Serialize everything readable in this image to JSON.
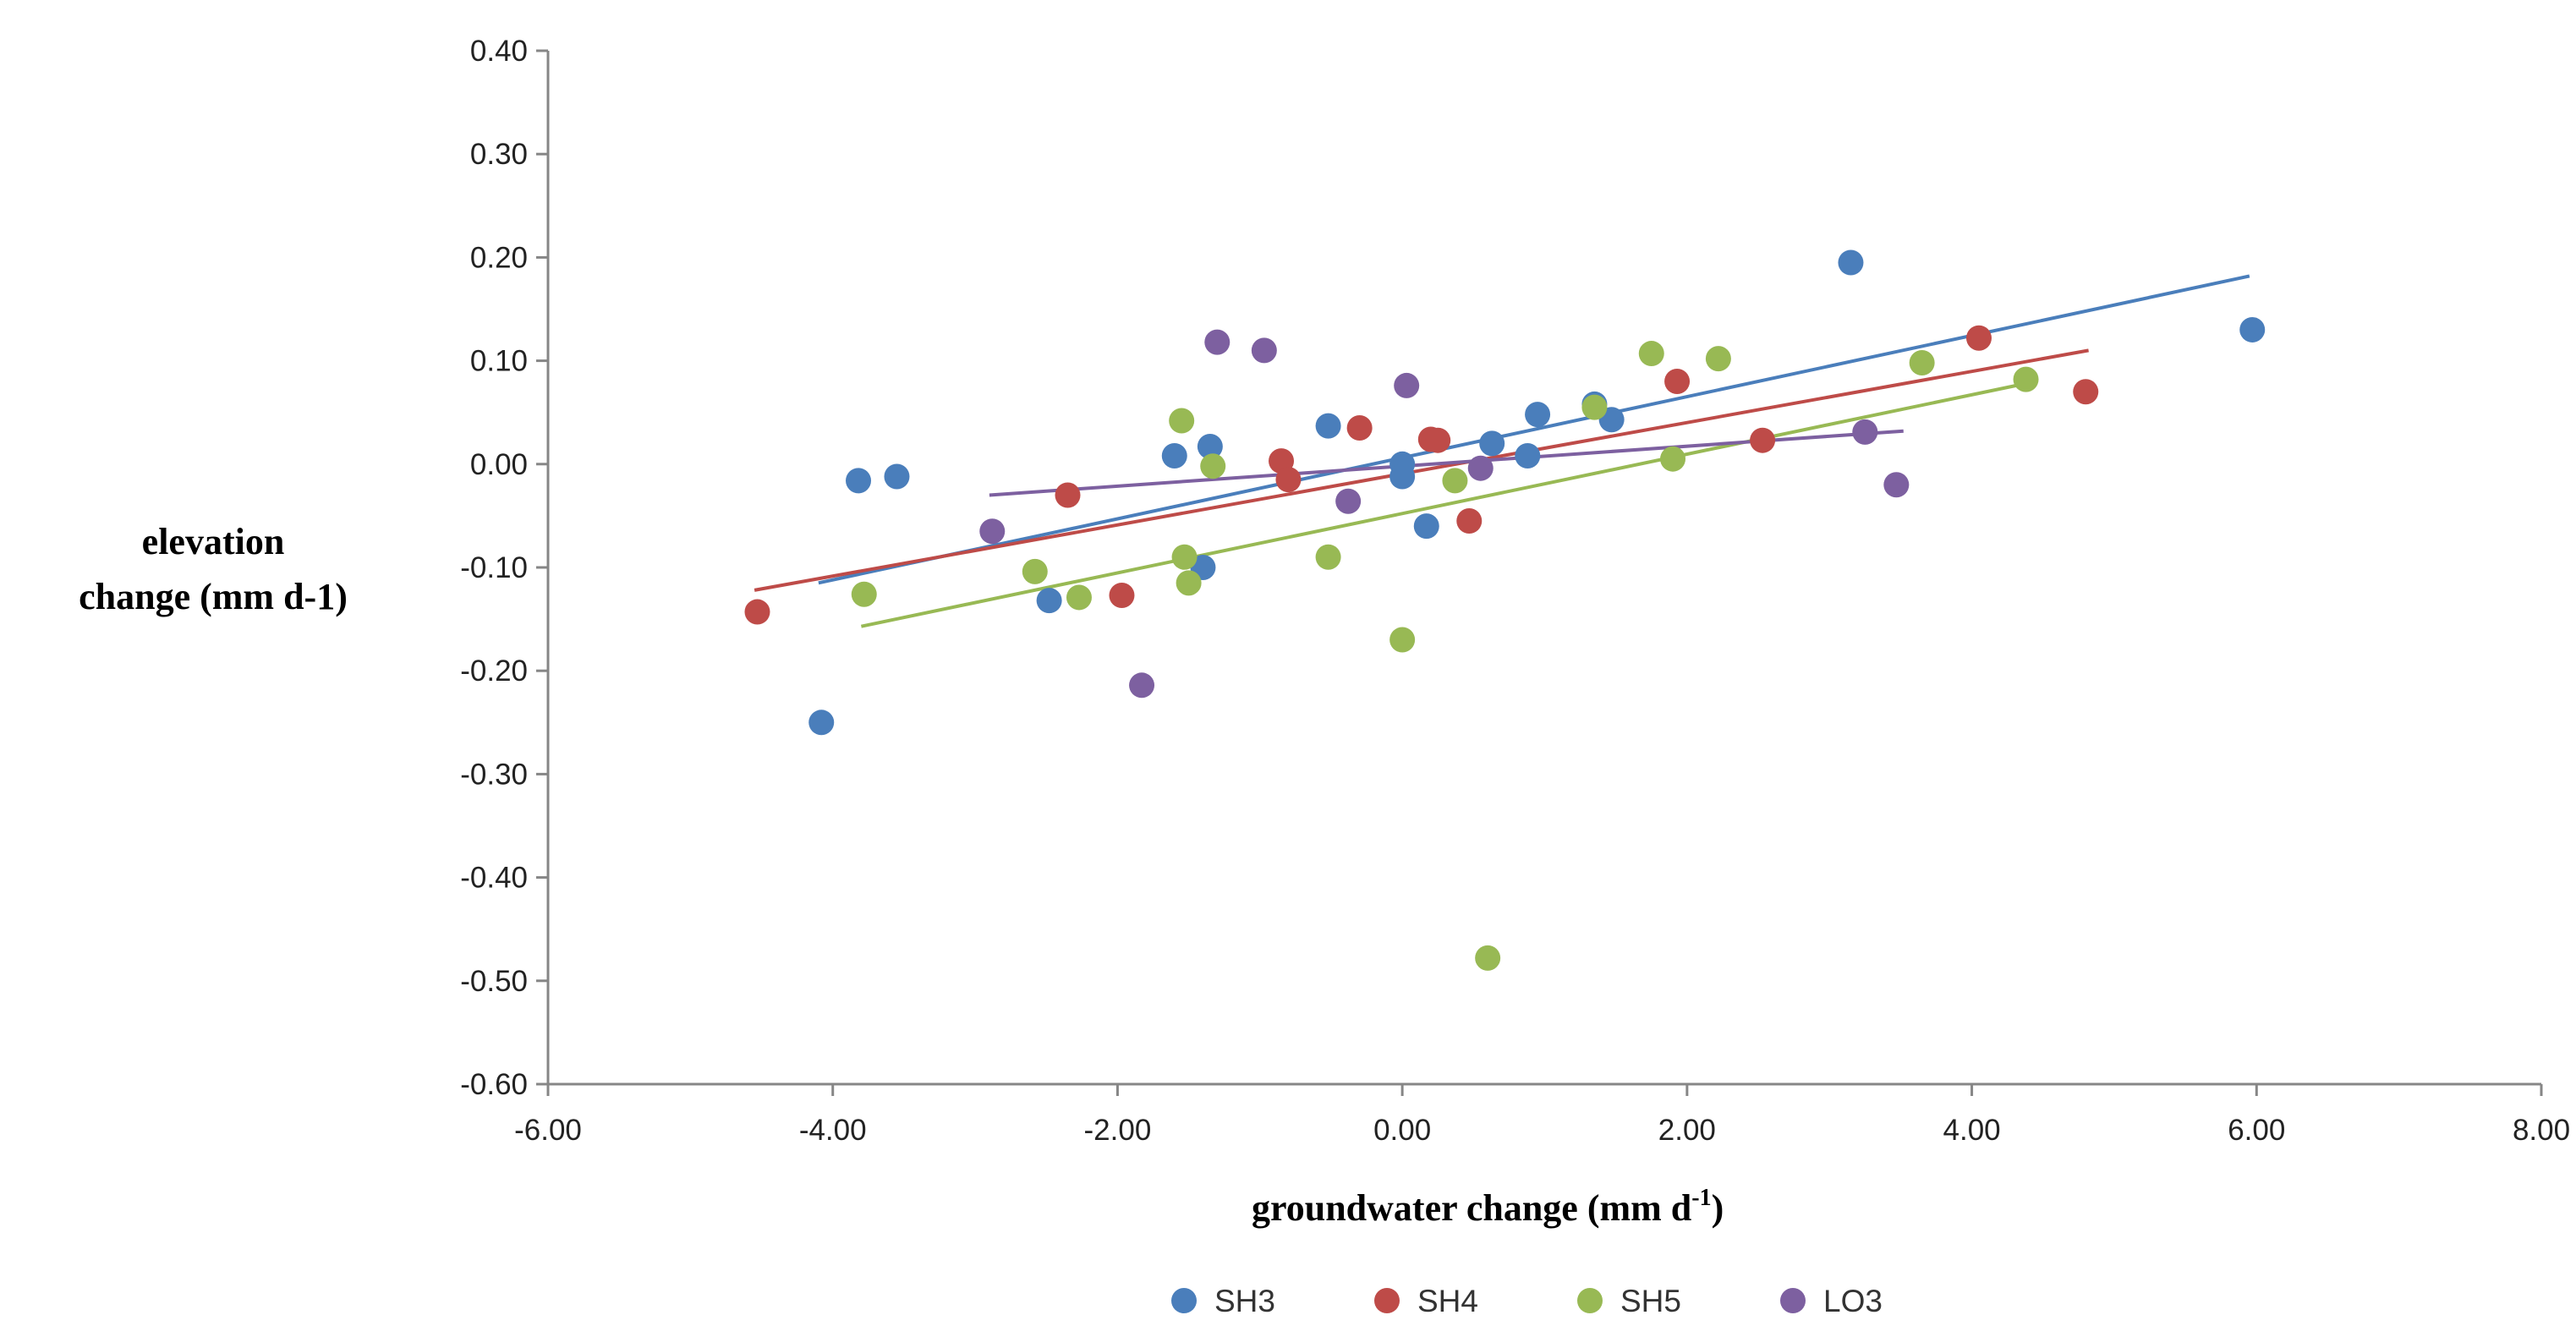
{
  "chart_data": {
    "type": "scatter",
    "title": "",
    "xlabel": "groundwater  change (mm  d",
    "xlabel_superscript": "-1",
    "xlabel_suffix": ")",
    "ylabel_lines": [
      "elevation",
      "change (mm  d-1)"
    ],
    "xlim": [
      -6,
      8
    ],
    "ylim": [
      -0.6,
      0.4
    ],
    "x_ticks": [
      -6,
      -4,
      -2,
      0,
      2,
      4,
      6,
      8
    ],
    "y_ticks": [
      -0.6,
      -0.5,
      -0.4,
      -0.3,
      -0.2,
      -0.1,
      0,
      0.1,
      0.2,
      0.3,
      0.4
    ],
    "x_tick_labels": [
      "-6.00",
      "-4.00",
      "-2.00",
      "0.00",
      "2.00",
      "4.00",
      "6.00",
      "8.00"
    ],
    "y_tick_labels": [
      "-0.60",
      "-0.50",
      "-0.40",
      "-0.30",
      "-0.20",
      "-0.10",
      "0.00",
      "0.10",
      "0.20",
      "0.30",
      "0.40"
    ],
    "grid": false,
    "legend_position": "bottom",
    "series": [
      {
        "name": "SH3",
        "color": "#4a7ebb",
        "points": [
          [
            -4.08,
            -0.25
          ],
          [
            -3.82,
            -0.016
          ],
          [
            -3.55,
            -0.012
          ],
          [
            -2.48,
            -0.132
          ],
          [
            -1.6,
            0.008
          ],
          [
            -1.35,
            0.017
          ],
          [
            -1.4,
            -0.1
          ],
          [
            -0.52,
            0.037
          ],
          [
            0,
            0.0
          ],
          [
            0,
            -0.012
          ],
          [
            0.17,
            -0.06
          ],
          [
            0.63,
            0.02
          ],
          [
            0.88,
            0.008
          ],
          [
            0.95,
            0.048
          ],
          [
            1.35,
            0.058
          ],
          [
            1.47,
            0.043
          ],
          [
            3.15,
            0.195
          ],
          [
            5.97,
            0.13
          ]
        ],
        "trend": [
          [
            -4.1,
            -0.115
          ],
          [
            5.95,
            0.182
          ]
        ]
      },
      {
        "name": "SH4",
        "color": "#be4b48",
        "points": [
          [
            -4.53,
            -0.143
          ],
          [
            -2.35,
            -0.03
          ],
          [
            -1.97,
            -0.127
          ],
          [
            -0.85,
            0.003
          ],
          [
            -0.8,
            -0.015
          ],
          [
            -0.3,
            0.035
          ],
          [
            0.2,
            0.024
          ],
          [
            0.25,
            0.023
          ],
          [
            0.47,
            -0.055
          ],
          [
            1.93,
            0.08
          ],
          [
            2.53,
            0.023
          ],
          [
            4.05,
            0.122
          ],
          [
            4.8,
            0.07
          ]
        ],
        "trend": [
          [
            -4.55,
            -0.122
          ],
          [
            4.82,
            0.11
          ]
        ]
      },
      {
        "name": "SH5",
        "color": "#98b954",
        "points": [
          [
            -3.78,
            -0.126
          ],
          [
            -2.58,
            -0.104
          ],
          [
            -2.27,
            -0.129
          ],
          [
            -1.55,
            0.042
          ],
          [
            -1.53,
            -0.09
          ],
          [
            -1.5,
            -0.115
          ],
          [
            -1.33,
            -0.002
          ],
          [
            -0.52,
            -0.09
          ],
          [
            0,
            -0.17
          ],
          [
            0.37,
            -0.016
          ],
          [
            0.6,
            -0.478
          ],
          [
            1.35,
            0.055
          ],
          [
            1.75,
            0.107
          ],
          [
            1.9,
            0.005
          ],
          [
            2.22,
            0.102
          ],
          [
            3.65,
            0.098
          ],
          [
            4.38,
            0.082
          ]
        ],
        "trend": [
          [
            -3.8,
            -0.157
          ],
          [
            4.38,
            0.078
          ]
        ]
      },
      {
        "name": "LO3",
        "color": "#7d60a0",
        "points": [
          [
            -2.88,
            -0.065
          ],
          [
            -1.83,
            -0.214
          ],
          [
            -1.3,
            0.118
          ],
          [
            -0.97,
            0.11
          ],
          [
            -0.38,
            -0.036
          ],
          [
            0.03,
            0.076
          ],
          [
            0.55,
            -0.004
          ],
          [
            3.25,
            0.031
          ],
          [
            3.47,
            -0.02
          ]
        ],
        "trend": [
          [
            -2.9,
            -0.03
          ],
          [
            3.52,
            0.032
          ]
        ]
      }
    ]
  }
}
